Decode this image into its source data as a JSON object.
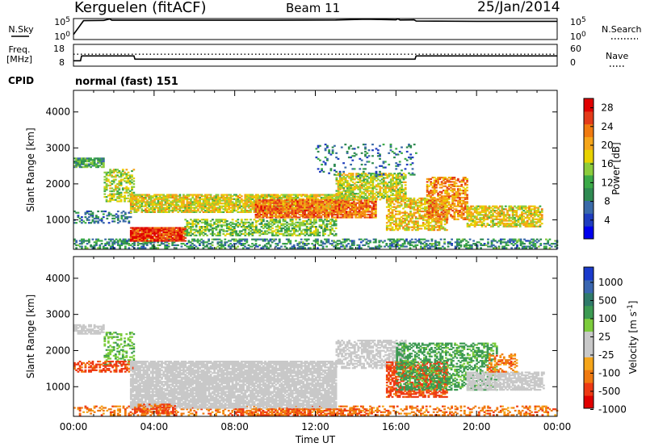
{
  "header": {
    "station": "Kerguelen (fitACF)",
    "beam": "Beam 11",
    "date": "25/Jan/2014",
    "cpid_label": "CPID",
    "cpid_value": "normal (fast) 151"
  },
  "colors": {
    "scale": [
      "#0000ee",
      "#1f3dbf",
      "#3a6aa8",
      "#2f8a52",
      "#3caa48",
      "#8ccc3c",
      "#e8d200",
      "#f5a51a",
      "#f07a10",
      "#e33b1a",
      "#e00000"
    ],
    "velocity_scale": [
      "#e00000",
      "#ee3a14",
      "#f07a10",
      "#f5a51a",
      "#c8c8c8",
      "#c8c8c8",
      "#7ccc3c",
      "#3c9a52",
      "#2f7a6a",
      "#3a66b0",
      "#1a3acc"
    ],
    "ground_scatter": "#c8c8c8"
  },
  "chart_data": [
    {
      "type": "line",
      "panel": "noise",
      "ylabel_left": "N.Sky",
      "ylabel_right": "N.Search",
      "yticks_left": [
        "10^5",
        "10^0"
      ],
      "yticks_right": [
        "10^5",
        "10^0"
      ],
      "series": [
        {
          "name": "N.Sky",
          "style": "solid",
          "points": [
            [
              0.0,
              1.2
            ],
            [
              0.5,
              4.5
            ],
            [
              1.5,
              4.55
            ],
            [
              1.8,
              4.9
            ],
            [
              1.9,
              4.6
            ],
            [
              6,
              4.6
            ],
            [
              10,
              4.6
            ],
            [
              13,
              4.65
            ],
            [
              14.5,
              4.85
            ],
            [
              15.5,
              4.75
            ],
            [
              16.0,
              4.7
            ],
            [
              16.1,
              4.95
            ],
            [
              16.2,
              4.65
            ],
            [
              16.9,
              4.7
            ],
            [
              17.0,
              4.4
            ],
            [
              20,
              4.35
            ],
            [
              24,
              4.35
            ]
          ]
        }
      ]
    },
    {
      "type": "line",
      "panel": "frequency",
      "ylabel_left": "Freq. [MHz]",
      "ylabel_right": "Nave",
      "yticks_left": [
        "18",
        "8"
      ],
      "yticks_right": [
        "60",
        "0"
      ],
      "series": [
        {
          "name": "Freq.",
          "style": "solid",
          "points": [
            [
              0.0,
              9.5
            ],
            [
              0.35,
              9.5
            ],
            [
              0.4,
              12.6
            ],
            [
              3.0,
              12.6
            ],
            [
              3.05,
              10.5
            ],
            [
              16.95,
              10.5
            ],
            [
              17.0,
              12.6
            ],
            [
              24,
              12.6
            ]
          ]
        },
        {
          "name": "Nave",
          "style": "dotted",
          "points": [
            [
              0.0,
              33
            ],
            [
              24,
              33
            ]
          ]
        }
      ]
    },
    {
      "type": "heatmap",
      "panel": "power",
      "ylabel": "Slant Range [km]",
      "yticks": [
        1000,
        2000,
        3000,
        4000
      ],
      "ylim": [
        180,
        4600
      ],
      "xlim": [
        0,
        24
      ],
      "colorbar": {
        "label": "Power [dB]",
        "ticks": [
          4,
          8,
          12,
          16,
          20,
          24,
          28
        ],
        "range": [
          0,
          30
        ]
      },
      "bands": [
        {
          "t0": 0.0,
          "t1": 24.0,
          "r0": 200,
          "r1": 480,
          "value": 9,
          "density": 0.45
        },
        {
          "t0": 0.0,
          "t1": 1.5,
          "r0": 2450,
          "r1": 2700,
          "value": 11,
          "density": 0.8
        },
        {
          "t0": 0.0,
          "t1": 2.8,
          "r0": 900,
          "r1": 1250,
          "value": 8,
          "density": 0.3
        },
        {
          "t0": 1.5,
          "t1": 3.0,
          "r0": 1500,
          "r1": 2400,
          "value": 16,
          "density": 0.5
        },
        {
          "t0": 2.8,
          "t1": 5.5,
          "r0": 400,
          "r1": 800,
          "value": 27,
          "density": 0.95
        },
        {
          "t0": 2.8,
          "t1": 13.5,
          "r0": 1200,
          "r1": 1700,
          "value": 18,
          "density": 0.8
        },
        {
          "t0": 5.5,
          "t1": 13.0,
          "r0": 550,
          "r1": 1000,
          "value": 14,
          "density": 0.55
        },
        {
          "t0": 9.0,
          "t1": 15.0,
          "r0": 1050,
          "r1": 1550,
          "value": 24,
          "density": 0.85
        },
        {
          "t0": 13.0,
          "t1": 16.5,
          "r0": 1550,
          "r1": 2300,
          "value": 17,
          "density": 0.65
        },
        {
          "t0": 15.5,
          "t1": 18.5,
          "r0": 700,
          "r1": 1600,
          "value": 19,
          "density": 0.6
        },
        {
          "t0": 17.5,
          "t1": 19.5,
          "r0": 1000,
          "r1": 2200,
          "value": 23,
          "density": 0.6
        },
        {
          "t0": 19.5,
          "t1": 23.2,
          "r0": 800,
          "r1": 1400,
          "value": 18,
          "density": 0.7
        },
        {
          "t0": 12.0,
          "t1": 17.0,
          "r0": 2200,
          "r1": 3100,
          "value": 7,
          "density": 0.12
        }
      ]
    },
    {
      "type": "heatmap",
      "panel": "velocity",
      "ylabel": "Slant Range [km]",
      "yticks": [
        1000,
        2000,
        3000,
        4000
      ],
      "ylim": [
        180,
        4600
      ],
      "xlim": [
        0,
        24
      ],
      "colorbar": {
        "label": "Velocity [m s^-1]",
        "ticks": [
          1000,
          500,
          100,
          25,
          -25,
          -100,
          -500,
          -1000
        ]
      },
      "xticks": [
        "00:00",
        "04:00",
        "08:00",
        "12:00",
        "16:00",
        "20:00",
        "00:00"
      ],
      "xlabel": "Time UT",
      "bands": [
        {
          "t0": 0.0,
          "t1": 24.0,
          "r0": 200,
          "r1": 480,
          "value": -150,
          "density": 0.35
        },
        {
          "t0": 0.0,
          "t1": 1.5,
          "r0": 2450,
          "r1": 2700,
          "value": 0,
          "density": 0.7,
          "ground": true
        },
        {
          "t0": 1.5,
          "t1": 3.0,
          "r0": 1600,
          "r1": 2500,
          "value": 80,
          "density": 0.4
        },
        {
          "t0": 0.0,
          "t1": 3.0,
          "r0": 1400,
          "r1": 1700,
          "value": -300,
          "density": 0.5
        },
        {
          "t0": 2.8,
          "t1": 13.0,
          "r0": 400,
          "r1": 1700,
          "value": 0,
          "density": 0.85,
          "ground": true
        },
        {
          "t0": 3.0,
          "t1": 5.0,
          "r0": 250,
          "r1": 500,
          "value": -200,
          "density": 0.6
        },
        {
          "t0": 8.0,
          "t1": 15.0,
          "r0": 200,
          "r1": 400,
          "value": -200,
          "density": 0.5
        },
        {
          "t0": 13.0,
          "t1": 16.5,
          "r0": 1500,
          "r1": 2300,
          "value": 0,
          "density": 0.6,
          "ground": true
        },
        {
          "t0": 15.5,
          "t1": 18.5,
          "r0": 700,
          "r1": 1700,
          "value": -300,
          "density": 0.65
        },
        {
          "t0": 16.0,
          "t1": 21.0,
          "r0": 900,
          "r1": 2200,
          "value": 150,
          "density": 0.5
        },
        {
          "t0": 19.5,
          "t1": 23.3,
          "r0": 900,
          "r1": 1400,
          "value": 0,
          "density": 0.75,
          "ground": true
        },
        {
          "t0": 20.5,
          "t1": 22.0,
          "r0": 1400,
          "r1": 1900,
          "value": -150,
          "density": 0.4
        }
      ]
    }
  ]
}
